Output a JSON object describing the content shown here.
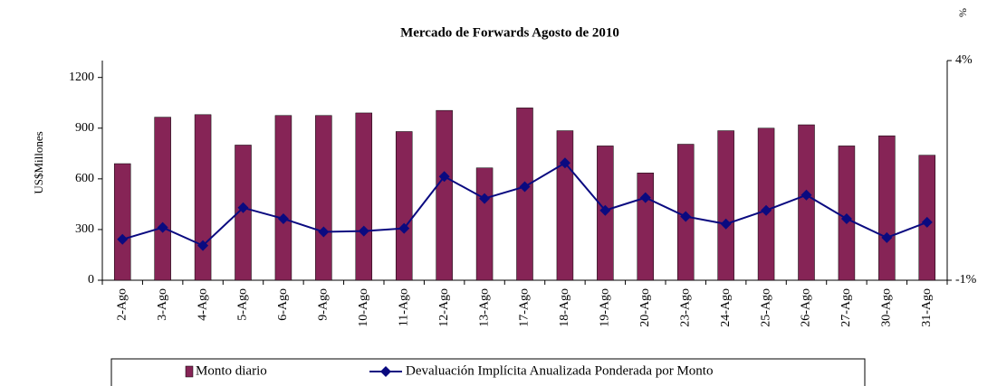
{
  "chart_data": {
    "type": "bar_line",
    "title": "Mercado de Forwards Agosto de 2010",
    "ylabel": "US$Millones",
    "y2label": "%",
    "categories": [
      "2-Ago",
      "3-Ago",
      "4-Ago",
      "5-Ago",
      "6-Ago",
      "9-Ago",
      "10-Ago",
      "11-Ago",
      "12-Ago",
      "13-Ago",
      "17-Ago",
      "18-Ago",
      "19-Ago",
      "20-Ago",
      "23-Ago",
      "24-Ago",
      "25-Ago",
      "26-Ago",
      "27-Ago",
      "30-Ago",
      "31-Ago"
    ],
    "series": [
      {
        "name": "Monto diario",
        "type": "bar",
        "color": "#862456",
        "values": [
          690,
          965,
          980,
          800,
          975,
          975,
          990,
          880,
          1005,
          665,
          1020,
          885,
          795,
          635,
          805,
          885,
          900,
          920,
          795,
          855,
          740
        ]
      },
      {
        "name": "Devaluación Implícita Anualizada Ponderada por Monto",
        "type": "line",
        "axis": "y2",
        "color": "#0a0a80",
        "values": [
          -0.07,
          0.2,
          -0.21,
          0.65,
          0.4,
          0.1,
          0.12,
          0.18,
          1.36,
          0.86,
          1.13,
          1.67,
          0.59,
          0.88,
          0.45,
          0.28,
          0.59,
          0.94,
          0.4,
          -0.03,
          0.32
        ]
      }
    ],
    "ylim": [
      0,
      1300
    ],
    "yticks": [
      0,
      300,
      600,
      900,
      1200
    ],
    "y2lim": [
      -1,
      4
    ],
    "y2ticks": [
      {
        "value": -1,
        "label": "-1%"
      },
      {
        "value": 4,
        "label": "4%"
      }
    ]
  }
}
